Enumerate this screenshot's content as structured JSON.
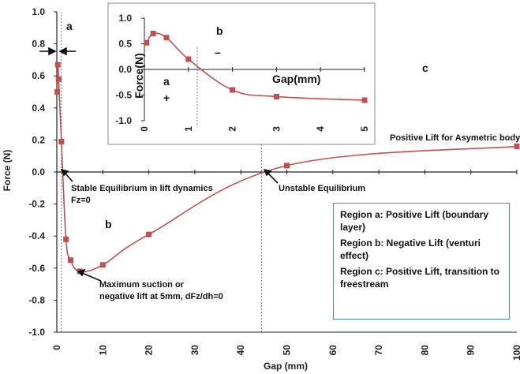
{
  "chart_data": [
    {
      "type": "line",
      "xlabel": "Gap (mm)",
      "ylabel": "Force (N)",
      "xlim": [
        0,
        100
      ],
      "ylim": [
        -1.0,
        1.0
      ],
      "x_ticks": [
        "0",
        "10",
        "20",
        "30",
        "40",
        "50",
        "60",
        "70",
        "80",
        "90",
        "100"
      ],
      "y_ticks": [
        "1.0",
        "0.8",
        "0.6",
        "0.4",
        "0.2",
        "0.0",
        "-0.2",
        "-0.4",
        "-0.6",
        "-0.8",
        "-1.0"
      ],
      "grid": false,
      "series": [
        {
          "color": "#c0504d",
          "x": [
            0.1,
            0.2,
            0.4,
            1,
            2,
            3,
            5,
            10,
            20,
            50,
            100
          ],
          "y": [
            0.5,
            0.67,
            0.58,
            0.19,
            -0.42,
            -0.55,
            -0.62,
            -0.58,
            -0.39,
            0.04,
            0.16
          ]
        }
      ],
      "vlines": [
        1.0,
        44.5
      ],
      "annotations": {
        "region_a": "a",
        "region_b": "b",
        "region_c": "c",
        "stable": "Stable Equilibrium in lift dynamics",
        "fz": "Fz=0",
        "unstable": "Unstable Equilibrium",
        "max_suction_1": "Maximum suction or",
        "max_suction_2": "negative lift at 5mm, dFz/dh=0",
        "positive_lift": "Positive Lift for Asymetric body"
      }
    },
    {
      "type": "line",
      "xlabel": "Gap(mm)",
      "ylabel": "Force(N)",
      "xlim": [
        0,
        5
      ],
      "ylim": [
        -1.0,
        1.0
      ],
      "x_ticks": [
        "0",
        "1",
        "2",
        "3",
        "4",
        "5"
      ],
      "y_ticks": [
        "1.0",
        "0.5",
        "0.0",
        "-0.5",
        "-1.0"
      ],
      "series": [
        {
          "color": "#c0504d",
          "x": [
            0.05,
            0.2,
            0.5,
            1,
            2,
            3,
            5
          ],
          "y": [
            0.52,
            0.7,
            0.62,
            0.2,
            -0.4,
            -0.53,
            -0.6
          ]
        }
      ],
      "vlines": [
        1.2
      ],
      "annotations": {
        "a": "a",
        "b": "b",
        "plus": "+",
        "minus": "–"
      }
    }
  ],
  "legend_box": {
    "line1": "Region a: Positive Lift (boundary layer)",
    "line2": "Region b: Negative Lift (venturi effect)",
    "line3": "Region c: Positive Lift, transition to freestream"
  },
  "colors": {
    "series": "#c0504d",
    "box_border": "#4a86c8"
  }
}
